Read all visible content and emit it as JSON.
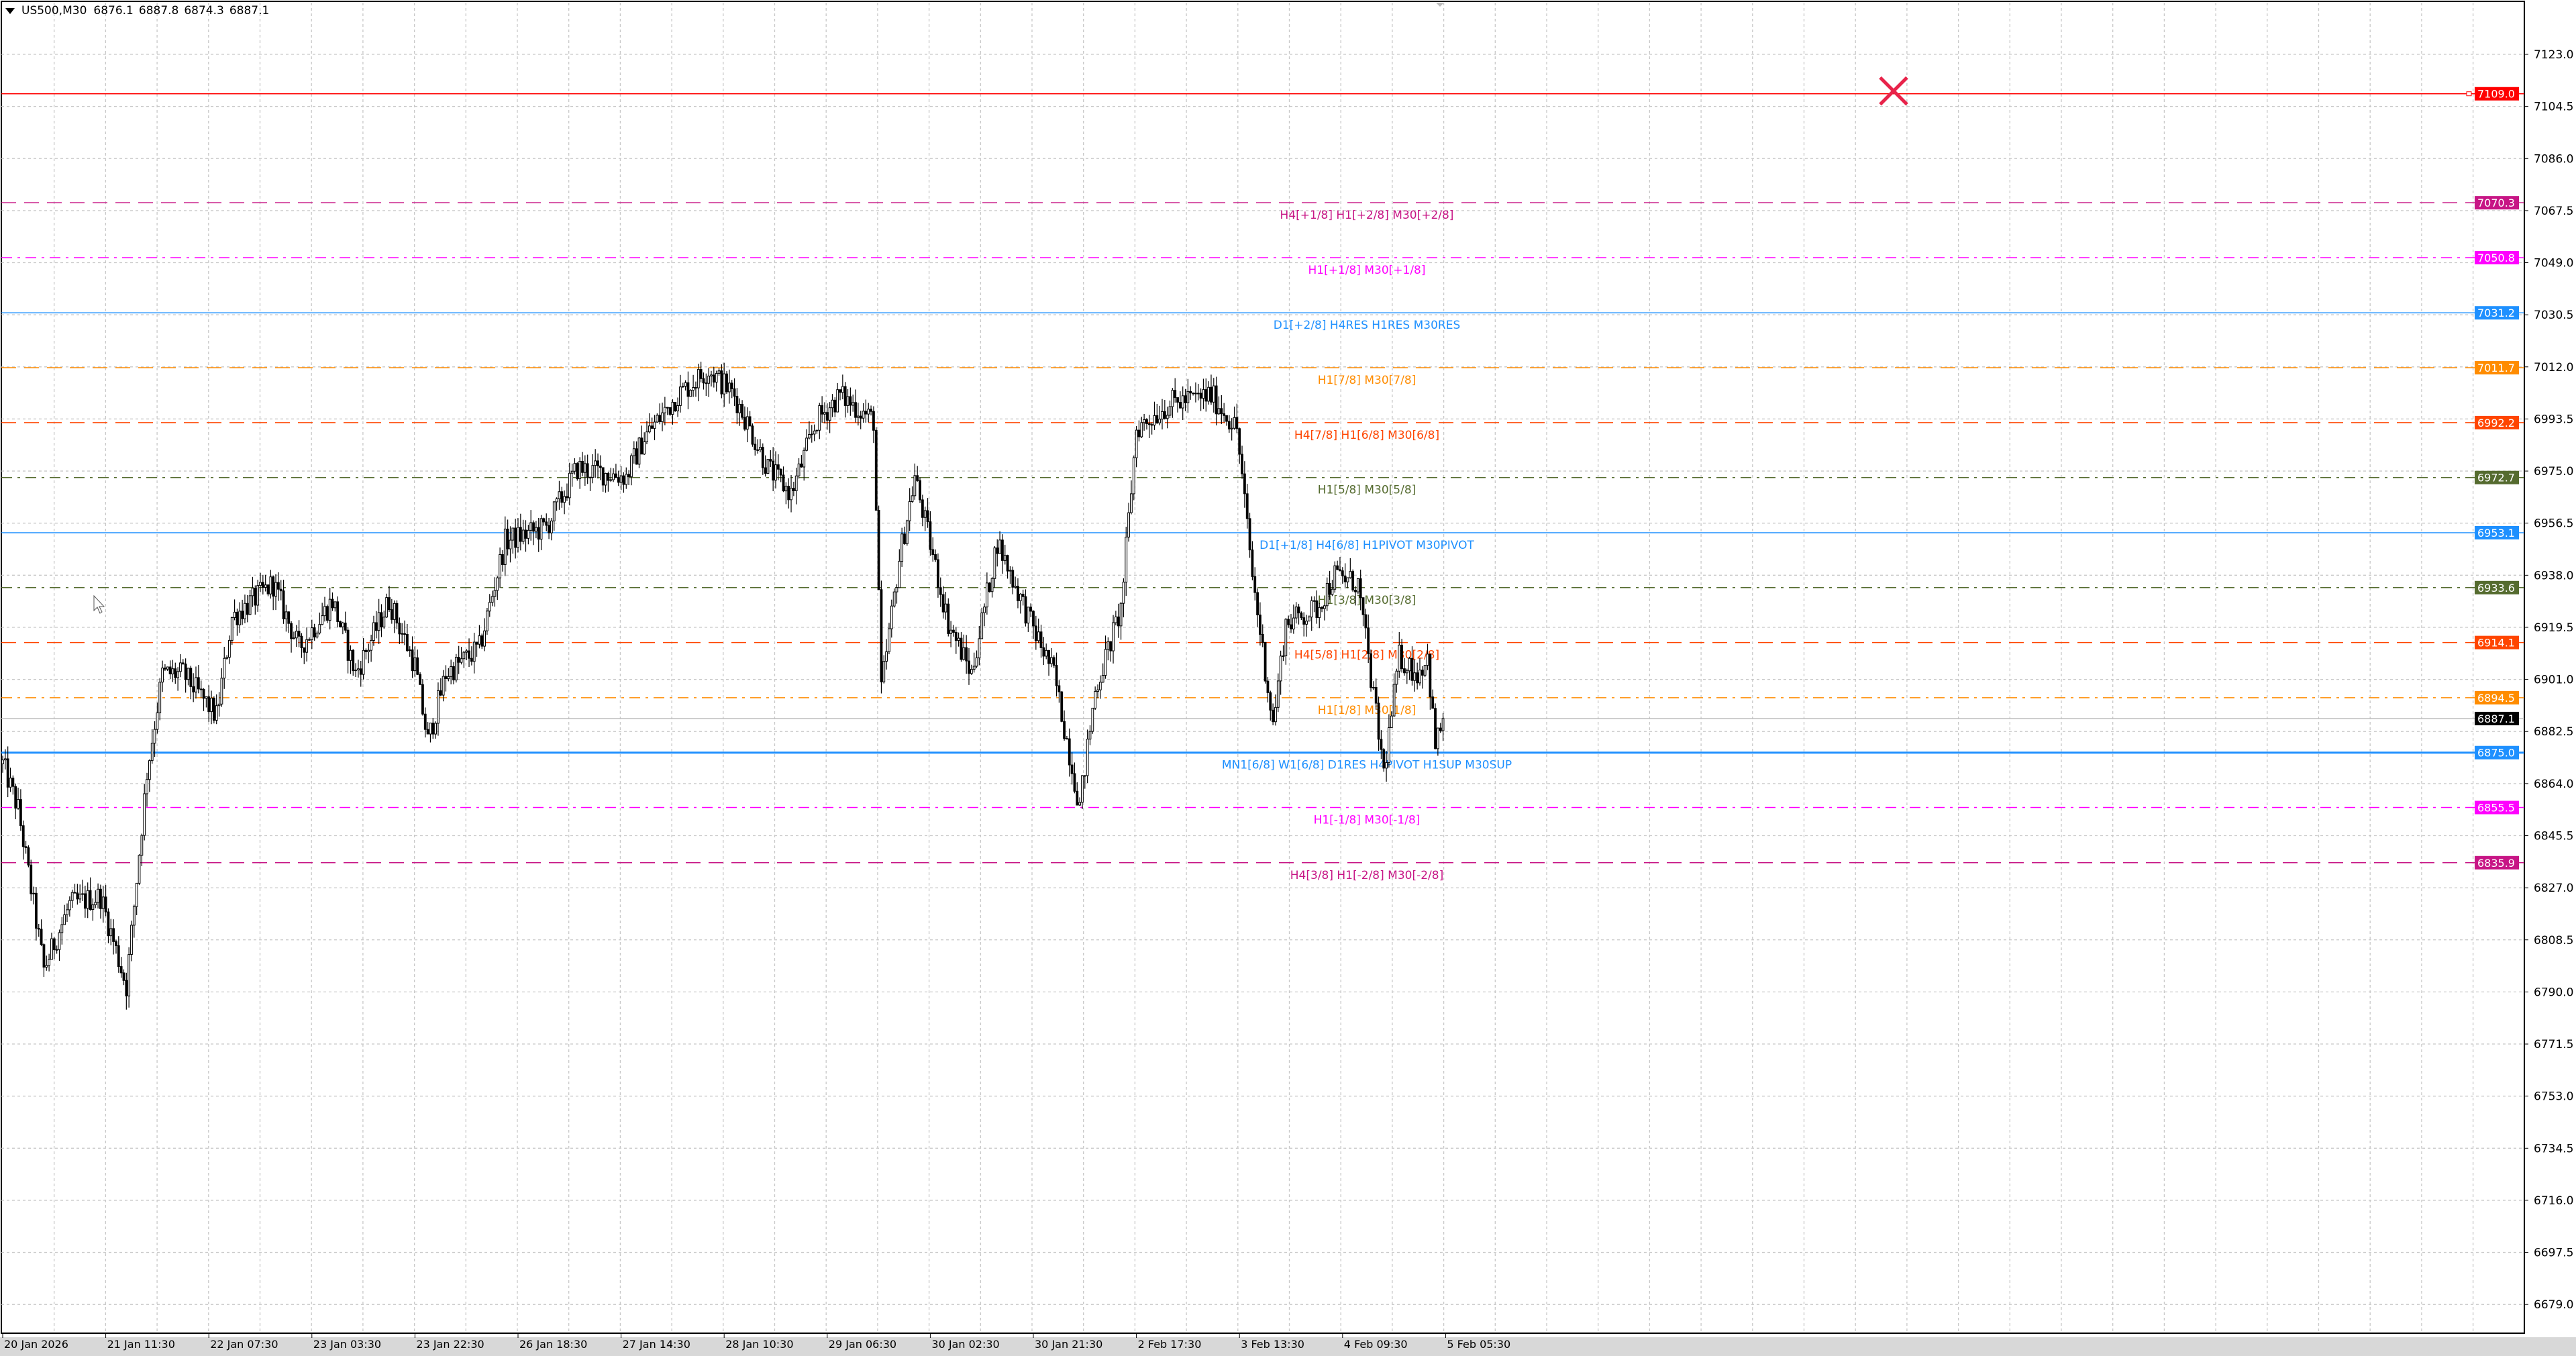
{
  "header": {
    "symbol": "US500,M30",
    "open": "6876.1",
    "high": "6887.8",
    "low": "6874.3",
    "close": "6887.1"
  },
  "chart_data": {
    "type": "candlestick",
    "symbol": "US500",
    "timeframe": "M30",
    "ylim": [
      6670,
      7135
    ],
    "grid": true,
    "price_ticks": [
      "7123.0",
      "7104.5",
      "7086.0",
      "7067.5",
      "7049.0",
      "7030.5",
      "7012.0",
      "6993.5",
      "6975.0",
      "6956.5",
      "6938.0",
      "6919.5",
      "6901.0",
      "6882.5",
      "6864.0",
      "6845.5",
      "6827.0",
      "6808.5",
      "6790.0",
      "6771.5",
      "6753.0",
      "6734.5",
      "6716.0",
      "6697.5",
      "6679.0"
    ],
    "time_ticks": [
      "20 Jan 2026",
      "21 Jan 11:30",
      "22 Jan 07:30",
      "23 Jan 03:30",
      "23 Jan 22:30",
      "26 Jan 18:30",
      "27 Jan 14:30",
      "28 Jan 10:30",
      "29 Jan 06:30",
      "30 Jan 02:30",
      "30 Jan 21:30",
      "2 Feb 17:30",
      "3 Feb 13:30",
      "4 Feb 09:30",
      "5 Feb 05:30"
    ],
    "bars_per_time_tick": 40,
    "approx_close_path": [
      [
        0,
        6871
      ],
      [
        6,
        6855
      ],
      [
        16,
        6798
      ],
      [
        26,
        6821
      ],
      [
        38,
        6824
      ],
      [
        48,
        6792
      ],
      [
        56,
        6868
      ],
      [
        62,
        6903
      ],
      [
        70,
        6903
      ],
      [
        83,
        6888
      ],
      [
        89,
        6923
      ],
      [
        105,
        6935
      ],
      [
        115,
        6912
      ],
      [
        128,
        6929
      ],
      [
        137,
        6903
      ],
      [
        150,
        6929
      ],
      [
        160,
        6906
      ],
      [
        165,
        6879
      ],
      [
        172,
        6903
      ],
      [
        185,
        6912
      ],
      [
        195,
        6950
      ],
      [
        211,
        6955
      ],
      [
        223,
        6976
      ],
      [
        242,
        6973
      ],
      [
        249,
        6987
      ],
      [
        262,
        7002
      ],
      [
        274,
        7011
      ],
      [
        284,
        7002
      ],
      [
        297,
        6976
      ],
      [
        306,
        6967
      ],
      [
        316,
        6993
      ],
      [
        325,
        7002
      ],
      [
        338,
        6993
      ],
      [
        341,
        6897
      ],
      [
        348,
        6944
      ],
      [
        354,
        6973
      ],
      [
        367,
        6921
      ],
      [
        376,
        6903
      ],
      [
        386,
        6950
      ],
      [
        399,
        6921
      ],
      [
        408,
        6903
      ],
      [
        418,
        6856
      ],
      [
        424,
        6897
      ],
      [
        434,
        6926
      ],
      [
        440,
        6990
      ],
      [
        453,
        6999
      ],
      [
        469,
        7002
      ],
      [
        479,
        6990
      ],
      [
        485,
        6938
      ],
      [
        493,
        6885
      ],
      [
        498,
        6921
      ],
      [
        510,
        6926
      ],
      [
        517,
        6938
      ],
      [
        526,
        6935
      ],
      [
        536,
        6868
      ],
      [
        542,
        6909
      ],
      [
        549,
        6903
      ],
      [
        553,
        6909
      ],
      [
        556,
        6877
      ],
      [
        559,
        6887.1
      ]
    ],
    "current_price": {
      "value": "6887.1",
      "color": "#000000"
    },
    "levels": [
      {
        "price": 7109.0,
        "value": "7109.0",
        "label": "",
        "color": "#ff0000",
        "style": "solid"
      },
      {
        "price": 7070.3,
        "value": "7070.3",
        "label": "H4[+1/8] H1[+2/8] M30[+2/8]",
        "color": "#c71585",
        "style": "dash"
      },
      {
        "price": 7050.8,
        "value": "7050.8",
        "label": "H1[+1/8] M30[+1/8]",
        "color": "#ff00ff",
        "style": "dashdot"
      },
      {
        "price": 7031.2,
        "value": "7031.2",
        "label": "D1[+2/8] H4RES H1RES M30RES",
        "color": "#1e90ff",
        "style": "solid"
      },
      {
        "price": 7011.7,
        "value": "7011.7",
        "label": "H1[7/8] M30[7/8]",
        "color": "#ff8c00",
        "style": "dash"
      },
      {
        "price": 6992.2,
        "value": "6992.2",
        "label": "H4[7/8] H1[6/8] M30[6/8]",
        "color": "#ff4500",
        "style": "dash"
      },
      {
        "price": 6972.7,
        "value": "6972.7",
        "label": "H1[5/8] M30[5/8]",
        "color": "#556b2f",
        "style": "dashdot"
      },
      {
        "price": 6953.1,
        "value": "6953.1",
        "label": "D1[+1/8] H4[6/8] H1PIVOT M30PIVOT",
        "color": "#1e90ff",
        "style": "solid"
      },
      {
        "price": 6933.6,
        "value": "6933.6",
        "label": "H1[3/8] M30[3/8]",
        "color": "#556b2f",
        "style": "dashdot"
      },
      {
        "price": 6914.1,
        "value": "6914.1",
        "label": "H4[5/8] H1[2/8] M30[2/8]",
        "color": "#ff4500",
        "style": "dash"
      },
      {
        "price": 6894.5,
        "value": "6894.5",
        "label": "H1[1/8] M30[1/8]",
        "color": "#ff8c00",
        "style": "dashdot"
      },
      {
        "price": 6875.0,
        "value": "6875.0",
        "label": "MN1[6/8] W1[6/8] D1RES H4PIVOT H1SUP M30SUP",
        "color": "#1e90ff",
        "style": "solid-bold"
      },
      {
        "price": 6855.5,
        "value": "6855.5",
        "label": "H1[-1/8] M30[-1/8]",
        "color": "#ff00ff",
        "style": "dashdot"
      },
      {
        "price": 6835.9,
        "value": "6835.9",
        "label": "H4[3/8] H1[-2/8] M30[-2/8]",
        "color": "#c71585",
        "style": "dash"
      }
    ],
    "marker": {
      "icon": "close-x-icon",
      "color": "#e8234a",
      "price": 7110
    }
  }
}
